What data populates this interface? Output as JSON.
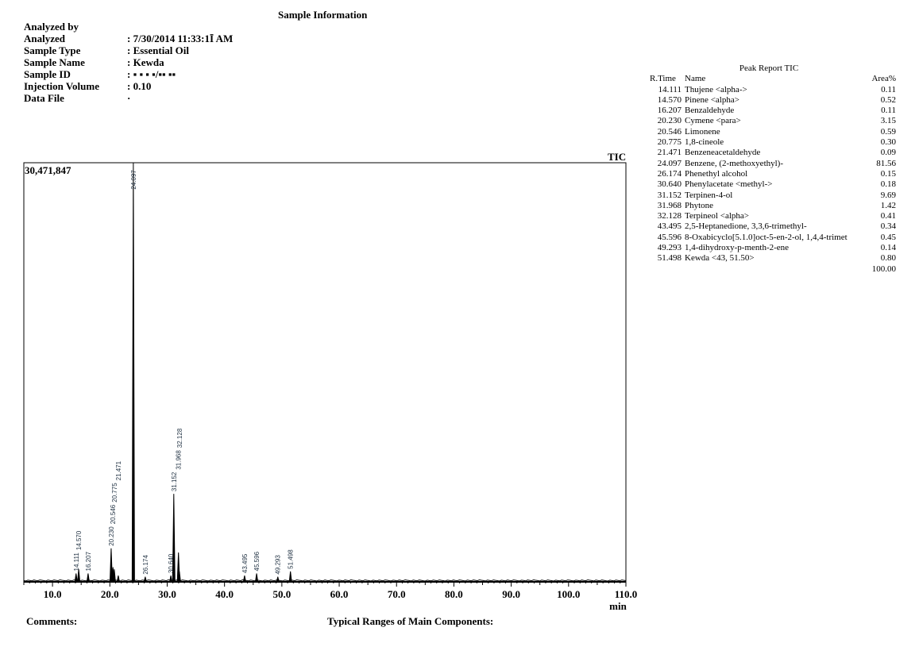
{
  "header": {
    "title": "Sample Information"
  },
  "info": [
    {
      "label": "Analyzed by",
      "value": ""
    },
    {
      "label": "Analyzed",
      "value": ": 7/30/2014 11:33:1Ī AM"
    },
    {
      "label": "Sample Type",
      "value": ": Essential Oil"
    },
    {
      "label": "Sample Name",
      "value": ": Kewda"
    },
    {
      "label": "Sample ID",
      "value": ": ▪ ▪ ▪ ▪/▪▪ ▪▪"
    },
    {
      "label": "Injection Volume",
      "value": ": 0.10"
    },
    {
      "label": "Data File",
      "value": "·"
    }
  ],
  "footer": {
    "comments": "Comments:",
    "ranges": "Typical Ranges of Main Components:"
  },
  "report": {
    "title": "Peak Report TIC",
    "col_time": "R.Time",
    "col_name": "Name",
    "col_area": "Area%",
    "total": "100.00",
    "rows": [
      {
        "t": "14.111",
        "n": "Thujene <alpha->",
        "a": "0.11"
      },
      {
        "t": "14.570",
        "n": "Pinene <alpha>",
        "a": "0.52"
      },
      {
        "t": "16.207",
        "n": "Benzaldehyde",
        "a": "0.11"
      },
      {
        "t": "20.230",
        "n": "Cymene <para>",
        "a": "3.15"
      },
      {
        "t": "20.546",
        "n": "Limonene",
        "a": "0.59"
      },
      {
        "t": "20.775",
        "n": "1,8-cineole",
        "a": "0.30"
      },
      {
        "t": "21.471",
        "n": "Benzeneacetaldehyde",
        "a": "0.09"
      },
      {
        "t": "24.097",
        "n": "Benzene, (2-methoxyethyl)-",
        "a": "81.56"
      },
      {
        "t": "26.174",
        "n": "Phenethyl alcohol",
        "a": "0.15"
      },
      {
        "t": "30.640",
        "n": "Phenylacetate <methyl->",
        "a": "0.18"
      },
      {
        "t": "31.152",
        "n": "Terpinen-4-ol",
        "a": "9.69"
      },
      {
        "t": "31.968",
        "n": "Phytone",
        "a": "1.42"
      },
      {
        "t": "32.128",
        "n": "Terpineol <alpha>",
        "a": "0.41"
      },
      {
        "t": "43.495",
        "n": "2,5-Heptanedione, 3,3,6-trimethyl-",
        "a": "0.34"
      },
      {
        "t": "45.596",
        "n": "8-Oxabicyclo[5.1.0]oct-5-en-2-ol, 1,4,4-trimet",
        "a": "0.45"
      },
      {
        "t": "49.293",
        "n": "1,4-dihydroxy-p-menth-2-ene",
        "a": "0.14"
      },
      {
        "t": "51.498",
        "n": "Kewda <43, 51.50>",
        "a": "0.80"
      }
    ]
  },
  "chart_data": {
    "type": "line",
    "title": "TIC",
    "xlabel": "min",
    "ylabel": "",
    "xlim": [
      5,
      110
    ],
    "ylim": [
      0,
      30471847
    ],
    "y_max_label": "30,471,847",
    "x_ticks": [
      "10.0",
      "20.0",
      "30.0",
      "40.0",
      "50.0",
      "60.0",
      "70.0",
      "80.0",
      "90.0",
      "100.0",
      "110.0"
    ],
    "peaks": [
      {
        "rt": 14.111,
        "label": "14.111",
        "height": 0.02
      },
      {
        "rt": 14.57,
        "label": "14.570",
        "height": 0.03
      },
      {
        "rt": 16.207,
        "label": "16.207",
        "height": 0.02
      },
      {
        "rt": 20.23,
        "label": "20.230",
        "height": 0.08
      },
      {
        "rt": 20.546,
        "label": "20.546",
        "height": 0.035
      },
      {
        "rt": 20.775,
        "label": "20.775",
        "height": 0.03
      },
      {
        "rt": 21.471,
        "label": "21.471",
        "height": 0.015
      },
      {
        "rt": 24.097,
        "label": "24.097",
        "height": 1.0
      },
      {
        "rt": 26.174,
        "label": "26.174",
        "height": 0.012
      },
      {
        "rt": 30.64,
        "label": "30.640",
        "height": 0.015
      },
      {
        "rt": 31.152,
        "label": "31.152",
        "height": 0.21
      },
      {
        "rt": 31.968,
        "label": "31.968",
        "height": 0.07
      },
      {
        "rt": 32.128,
        "label": "32.128",
        "height": 0.025
      },
      {
        "rt": 43.495,
        "label": "43.495",
        "height": 0.015
      },
      {
        "rt": 45.596,
        "label": "45.596",
        "height": 0.02
      },
      {
        "rt": 49.293,
        "label": "49.293",
        "height": 0.012
      },
      {
        "rt": 51.498,
        "label": "51.498",
        "height": 0.025
      }
    ]
  }
}
